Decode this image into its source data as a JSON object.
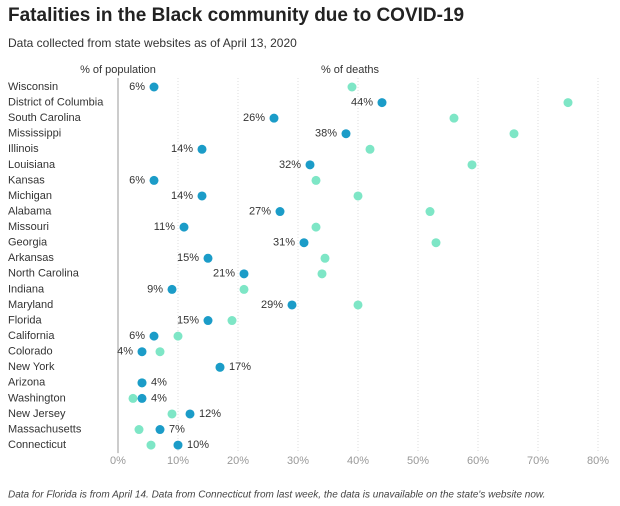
{
  "chart_data": {
    "type": "dumbbell",
    "title": "Fatalities in the Black community due to COVID-19",
    "subtitle": "Data collected from state websites as of April 13, 2020",
    "note": "Data for Florida is from April 14. Data from Connecticut from last week, the data is unavailable on the state's website now.",
    "categories": [
      "Wisconsin",
      "District of Columbia",
      "South Carolina",
      "Mississippi",
      "Illinois",
      "Louisiana",
      "Kansas",
      "Michigan",
      "Alabama",
      "Missouri",
      "Georgia",
      "Arkansas",
      "North Carolina",
      "Indiana",
      "Maryland",
      "Florida",
      "California",
      "Colorado",
      "New York",
      "Arizona",
      "Washington",
      "New Jersey",
      "Massachusetts",
      "Connecticut"
    ],
    "series": [
      {
        "name": "% of population",
        "color": "#1b9cc8",
        "values": [
          6,
          44,
          26,
          38,
          14,
          32,
          6,
          14,
          27,
          11,
          31,
          15,
          21,
          9,
          29,
          15,
          6,
          4,
          17,
          4,
          4,
          12,
          7,
          10
        ],
        "value_labels": [
          "6%",
          "44%",
          "26%",
          "38%",
          "14%",
          "32%",
          "6%",
          "14%",
          "27%",
          "11%",
          "31%",
          "15%",
          "21%",
          "9%",
          "29%",
          "15%",
          "6%",
          "4%",
          "17%",
          "4%",
          "4%",
          "12%",
          "7%",
          "10%"
        ]
      },
      {
        "name": "% of deaths",
        "color": "#7ee6c6",
        "values": [
          39,
          75,
          56,
          66,
          42,
          59,
          33,
          40,
          52,
          33,
          53,
          34.5,
          34,
          21,
          40,
          19,
          10,
          7,
          17,
          4,
          2.5,
          9,
          3.5,
          5.5
        ]
      }
    ],
    "xlim": [
      0,
      80
    ],
    "xticks": [
      {
        "value": 0,
        "label": "0%"
      },
      {
        "value": 10,
        "label": "10%"
      },
      {
        "value": 20,
        "label": "20%"
      },
      {
        "value": 30,
        "label": "30%"
      },
      {
        "value": 40,
        "label": "40%"
      },
      {
        "value": 50,
        "label": "50%"
      },
      {
        "value": 60,
        "label": "60%"
      },
      {
        "value": 70,
        "label": "70%"
      },
      {
        "value": 80,
        "label": "80%"
      }
    ],
    "grid": true
  }
}
